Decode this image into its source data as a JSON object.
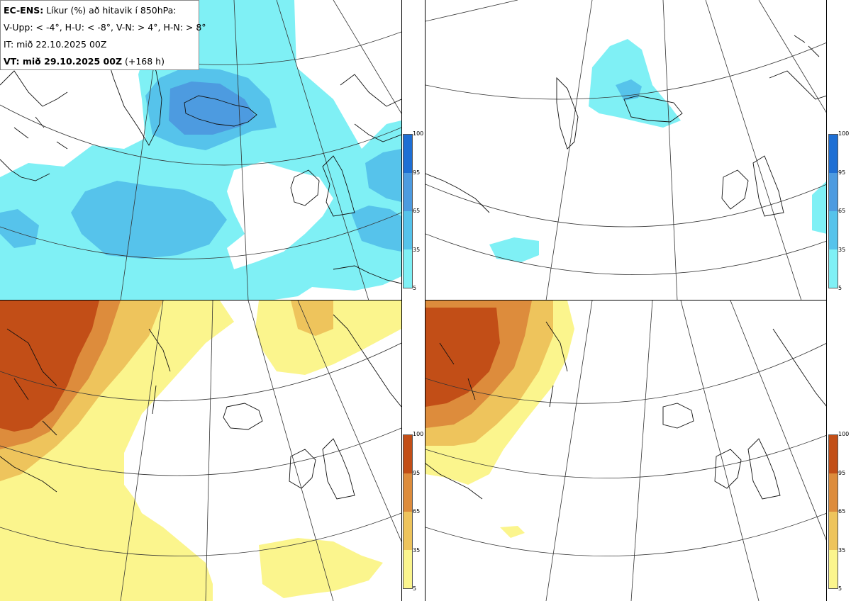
{
  "header": {
    "model": "EC-ENS:",
    "title": "Líkur (%) að hitavik í 850hPa:",
    "thresholds": "V-Upp: < -4°, H-U: < -8°, V-N: > 4°, H-N: > 8°",
    "init_time": "IT: mið 22.10.2025 00Z",
    "valid_label": "VT: mið 29.10.2025 00Z",
    "lead_time": "(+168 h)"
  },
  "panels": [
    {
      "id": "cold-4",
      "palette": "blue"
    },
    {
      "id": "cold-8",
      "palette": "blue"
    },
    {
      "id": "warm-4",
      "palette": "orange"
    },
    {
      "id": "warm-8",
      "palette": "orange"
    }
  ],
  "legend": {
    "ticks": [
      "100",
      "95",
      "65",
      "35",
      "5"
    ],
    "blue_colors": [
      "#1e6fd4",
      "#4d9be0",
      "#56c3eb",
      "#7ff0f5"
    ],
    "orange_colors": [
      "#c24e17",
      "#dd8c3c",
      "#eec45c",
      "#fbf58d"
    ]
  }
}
